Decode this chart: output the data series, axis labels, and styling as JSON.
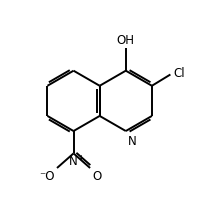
{
  "bg_color": "#ffffff",
  "bond_color": "#000000",
  "text_color": "#000000",
  "lw": 1.4,
  "off": 0.012,
  "trim": 0.13,
  "fs": 8.5,
  "xlim": [
    0.0,
    1.0
  ],
  "ylim": [
    0.0,
    1.0
  ]
}
